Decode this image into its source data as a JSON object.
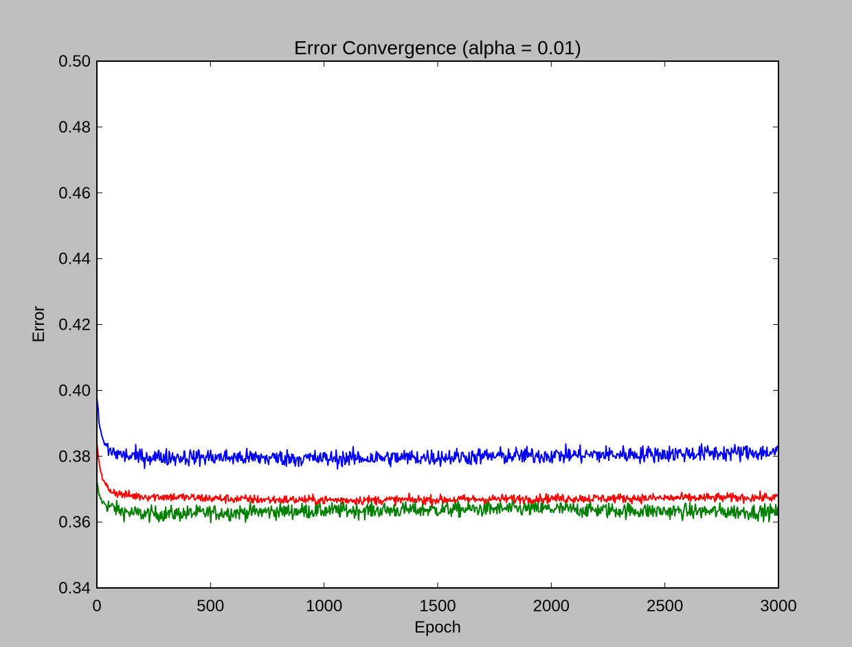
{
  "chart_data": {
    "type": "line",
    "title": "Error Convergence (alpha = 0.01)",
    "xlabel": "Epoch",
    "ylabel": "Error",
    "xlim": [
      0,
      3000
    ],
    "ylim": [
      0.34,
      0.5
    ],
    "xticks": [
      0,
      500,
      1000,
      1500,
      2000,
      2500,
      3000
    ],
    "xtick_labels": [
      "0",
      "500",
      "1000",
      "1500",
      "2000",
      "2500",
      "3000"
    ],
    "yticks": [
      0.34,
      0.36,
      0.38,
      0.4,
      0.42,
      0.44,
      0.46,
      0.48,
      0.5
    ],
    "ytick_labels": [
      "0.34",
      "0.36",
      "0.38",
      "0.40",
      "0.42",
      "0.44",
      "0.46",
      "0.48",
      "0.50"
    ],
    "grid": false,
    "legend": "none",
    "series": [
      {
        "color": "#0000ff",
        "x": [
          0,
          10,
          25,
          50,
          100,
          150,
          200,
          300,
          500,
          750,
          1000,
          1250,
          1500,
          1750,
          2000,
          2250,
          2500,
          2750,
          3000
        ],
        "y": [
          0.398,
          0.39,
          0.385,
          0.382,
          0.3805,
          0.38,
          0.3798,
          0.3797,
          0.3797,
          0.3795,
          0.3793,
          0.3795,
          0.3797,
          0.38,
          0.3803,
          0.3805,
          0.3807,
          0.381,
          0.3812
        ],
        "noise": 0.0013
      },
      {
        "color": "#ff0000",
        "x": [
          0,
          10,
          25,
          50,
          100,
          150,
          200,
          300,
          500,
          750,
          1000,
          1250,
          1500,
          1750,
          2000,
          2250,
          2500,
          2750,
          3000
        ],
        "y": [
          0.384,
          0.378,
          0.373,
          0.37,
          0.3685,
          0.368,
          0.3678,
          0.3677,
          0.3672,
          0.3668,
          0.3667,
          0.3667,
          0.3668,
          0.367,
          0.3672,
          0.3672,
          0.3673,
          0.3674,
          0.3675
        ],
        "noise": 0.0007
      },
      {
        "color": "#007f00",
        "x": [
          0,
          10,
          25,
          50,
          100,
          150,
          200,
          300,
          500,
          750,
          1000,
          1250,
          1500,
          1750,
          2000,
          2250,
          2500,
          2750,
          3000
        ],
        "y": [
          0.372,
          0.368,
          0.366,
          0.365,
          0.3635,
          0.3628,
          0.3625,
          0.3625,
          0.3628,
          0.3632,
          0.3635,
          0.3636,
          0.3638,
          0.364,
          0.364,
          0.3636,
          0.3633,
          0.3632,
          0.363
        ],
        "noise": 0.0012
      }
    ]
  }
}
